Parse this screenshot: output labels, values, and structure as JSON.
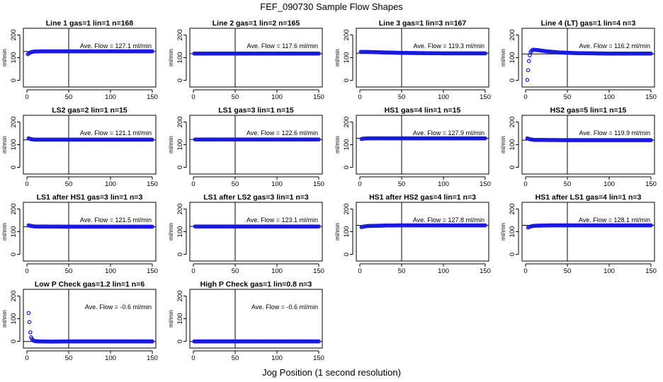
{
  "figure": {
    "title": "FEF_090730  Sample Flow Shapes",
    "xcaption": "Jog Position (1 second resolution)"
  },
  "chart_data": [
    {
      "type": "scatter",
      "title": "Line 1 gas=1 lin=1 n=168",
      "ylabel": "ml/min",
      "xlim": [
        0,
        150
      ],
      "ylim": [
        -20,
        220
      ],
      "xticks": [
        0,
        50,
        100,
        150
      ],
      "yticks": [
        0,
        100,
        200
      ],
      "vline": 50,
      "hline": 127.1,
      "annotation": "Ave. Flow =  127.1  ml/min",
      "series": [
        {
          "points": [
            [
              1,
              115
            ],
            [
              2,
              118
            ],
            [
              3,
              121
            ],
            [
              5,
              124
            ],
            [
              7,
              126
            ],
            [
              10,
              127
            ],
            [
              20,
              128
            ],
            [
              50,
              128
            ],
            [
              100,
              128
            ],
            [
              150,
              128
            ]
          ]
        }
      ]
    },
    {
      "type": "scatter",
      "title": "Line 2 gas=1 lin=2 n=165",
      "ylabel": "ml/min",
      "xlim": [
        0,
        150
      ],
      "ylim": [
        -20,
        220
      ],
      "xticks": [
        0,
        50,
        100,
        150
      ],
      "yticks": [
        0,
        100,
        200
      ],
      "vline": 50,
      "hline": 117.6,
      "annotation": "Ave. Flow =  117.6  ml/min",
      "series": [
        {
          "points": [
            [
              1,
              118
            ],
            [
              50,
              118
            ],
            [
              150,
              118
            ]
          ]
        }
      ]
    },
    {
      "type": "scatter",
      "title": "Line 3 gas=1 lin=3 n=167",
      "ylabel": "ml/min",
      "xlim": [
        0,
        150
      ],
      "ylim": [
        -20,
        220
      ],
      "xticks": [
        0,
        50,
        100,
        150
      ],
      "yticks": [
        0,
        100,
        200
      ],
      "vline": 50,
      "hline": 119.3,
      "annotation": "Ave. Flow =  119.3  ml/min",
      "series": [
        {
          "points": [
            [
              1,
              125
            ],
            [
              10,
              125
            ],
            [
              30,
              123
            ],
            [
              50,
              121
            ],
            [
              100,
              119
            ],
            [
              150,
              119
            ]
          ]
        }
      ]
    },
    {
      "type": "scatter",
      "title": "Line 4 (LT) gas=1 lin=4 n=3",
      "ylabel": "ml/min",
      "xlim": [
        0,
        150
      ],
      "ylim": [
        -20,
        220
      ],
      "xticks": [
        0,
        50,
        100,
        150
      ],
      "yticks": [
        0,
        100,
        200
      ],
      "vline": 50,
      "hline": 116.2,
      "annotation": "Ave. Flow =  116.2  ml/min",
      "series": [
        {
          "points": [
            [
              2,
              2
            ],
            [
              3,
              45
            ],
            [
              4,
              85
            ],
            [
              5,
              110
            ],
            [
              6,
              125
            ],
            [
              8,
              133
            ],
            [
              10,
              135
            ],
            [
              15,
              133
            ],
            [
              25,
              128
            ],
            [
              40,
              123
            ],
            [
              60,
              120
            ],
            [
              100,
              118
            ],
            [
              150,
              118
            ]
          ]
        }
      ]
    },
    {
      "type": "scatter",
      "title": "LS2 gas=2 lin=1 n=15",
      "ylabel": "ml/min",
      "xlim": [
        0,
        150
      ],
      "ylim": [
        -20,
        220
      ],
      "xticks": [
        0,
        50,
        100,
        150
      ],
      "yticks": [
        0,
        100,
        200
      ],
      "vline": 50,
      "hline": 121.1,
      "annotation": "Ave. Flow =  121.1  ml/min",
      "series": [
        {
          "points": [
            [
              2,
              128
            ],
            [
              5,
              124
            ],
            [
              10,
              122
            ],
            [
              50,
              122
            ],
            [
              150,
              122
            ]
          ]
        }
      ]
    },
    {
      "type": "scatter",
      "title": "LS1 gas=3 lin=1 n=15",
      "ylabel": "ml/min",
      "xlim": [
        0,
        150
      ],
      "ylim": [
        -20,
        220
      ],
      "xticks": [
        0,
        50,
        100,
        150
      ],
      "yticks": [
        0,
        100,
        200
      ],
      "vline": 50,
      "hline": 122.6,
      "annotation": "Ave. Flow =  122.6  ml/min",
      "series": [
        {
          "points": [
            [
              2,
              123
            ],
            [
              50,
              123
            ],
            [
              150,
              123
            ]
          ]
        }
      ]
    },
    {
      "type": "scatter",
      "title": "HS1 gas=4 lin=1 n=15",
      "ylabel": "ml/min",
      "xlim": [
        0,
        150
      ],
      "ylim": [
        -20,
        220
      ],
      "xticks": [
        0,
        50,
        100,
        150
      ],
      "yticks": [
        0,
        100,
        200
      ],
      "vline": 50,
      "hline": 127.9,
      "annotation": "Ave. Flow =  127.9  ml/min",
      "series": [
        {
          "points": [
            [
              2,
              125
            ],
            [
              5,
              127
            ],
            [
              10,
              128
            ],
            [
              50,
              128
            ],
            [
              150,
              128
            ]
          ]
        }
      ]
    },
    {
      "type": "scatter",
      "title": "HS2 gas=5 lin=1 n=15",
      "ylabel": "ml/min",
      "xlim": [
        0,
        150
      ],
      "ylim": [
        -20,
        220
      ],
      "xticks": [
        0,
        50,
        100,
        150
      ],
      "yticks": [
        0,
        100,
        200
      ],
      "vline": 50,
      "hline": 119.9,
      "annotation": "Ave. Flow =  119.9  ml/min",
      "series": [
        {
          "points": [
            [
              2,
              128
            ],
            [
              5,
              124
            ],
            [
              10,
              121
            ],
            [
              50,
              120
            ],
            [
              150,
              120
            ]
          ]
        }
      ]
    },
    {
      "type": "scatter",
      "title": "LS1 after HS1 gas=3 lin=1 n=3",
      "ylabel": "ml/min",
      "xlim": [
        0,
        150
      ],
      "ylim": [
        -20,
        220
      ],
      "xticks": [
        0,
        50,
        100,
        150
      ],
      "yticks": [
        0,
        100,
        200
      ],
      "vline": 50,
      "hline": 121.5,
      "annotation": "Ave. Flow =  121.5  ml/min",
      "series": [
        {
          "points": [
            [
              2,
              128
            ],
            [
              5,
              125
            ],
            [
              10,
              123
            ],
            [
              50,
              122
            ],
            [
              150,
              122
            ]
          ]
        }
      ]
    },
    {
      "type": "scatter",
      "title": "LS1 after LS2 gas=3 lin=1 n=3",
      "ylabel": "ml/min",
      "xlim": [
        0,
        150
      ],
      "ylim": [
        -20,
        220
      ],
      "xticks": [
        0,
        50,
        100,
        150
      ],
      "yticks": [
        0,
        100,
        200
      ],
      "vline": 50,
      "hline": 123.1,
      "annotation": "Ave. Flow =  123.1  ml/min",
      "series": [
        {
          "points": [
            [
              2,
              123
            ],
            [
              50,
              123
            ],
            [
              150,
              123
            ]
          ]
        }
      ]
    },
    {
      "type": "scatter",
      "title": "HS1 after HS2 gas=4 lin=1 n=3",
      "ylabel": "ml/min",
      "xlim": [
        0,
        150
      ],
      "ylim": [
        -20,
        220
      ],
      "xticks": [
        0,
        50,
        100,
        150
      ],
      "yticks": [
        0,
        100,
        200
      ],
      "vline": 50,
      "hline": 127.8,
      "annotation": "Ave. Flow =  127.8  ml/min",
      "series": [
        {
          "points": [
            [
              2,
              120
            ],
            [
              5,
              123
            ],
            [
              10,
              125
            ],
            [
              30,
              127
            ],
            [
              50,
              128
            ],
            [
              150,
              128
            ]
          ]
        }
      ]
    },
    {
      "type": "scatter",
      "title": "HS1 after LS1 gas=4 lin=1 n=3",
      "ylabel": "ml/min",
      "xlim": [
        0,
        150
      ],
      "ylim": [
        -20,
        220
      ],
      "xticks": [
        0,
        50,
        100,
        150
      ],
      "yticks": [
        0,
        100,
        200
      ],
      "vline": 50,
      "hline": 128.1,
      "annotation": "Ave. Flow =  128.1  ml/min",
      "series": [
        {
          "points": [
            [
              3,
              118
            ],
            [
              5,
              122
            ],
            [
              10,
              126
            ],
            [
              30,
              128
            ],
            [
              50,
              128
            ],
            [
              150,
              128
            ]
          ]
        }
      ]
    },
    {
      "type": "scatter",
      "title": "Low P Check gas=1.2 lin=1 n=6",
      "ylabel": "ml/min",
      "xlim": [
        0,
        150
      ],
      "ylim": [
        -20,
        220
      ],
      "xticks": [
        0,
        50,
        100,
        150
      ],
      "yticks": [
        0,
        100,
        200
      ],
      "vline": 50,
      "hline": -0.6,
      "annotation": "Ave. Flow =  -0.6  ml/min",
      "series": [
        {
          "points": [
            [
              2,
              125
            ],
            [
              3,
              85
            ],
            [
              4,
              40
            ],
            [
              5,
              18
            ],
            [
              7,
              5
            ],
            [
              10,
              1
            ],
            [
              15,
              0
            ],
            [
              30,
              -1
            ],
            [
              50,
              0
            ],
            [
              100,
              0
            ],
            [
              150,
              0
            ]
          ]
        }
      ]
    },
    {
      "type": "scatter",
      "title": "High P Check gas=1 lin=0.8 n=3",
      "ylabel": "ml/min",
      "xlim": [
        0,
        150
      ],
      "ylim": [
        -20,
        220
      ],
      "xticks": [
        0,
        50,
        100,
        150
      ],
      "yticks": [
        0,
        100,
        200
      ],
      "vline": 50,
      "hline": -0.6,
      "annotation": "Ave. Flow =  -0.6  ml/min",
      "series": [
        {
          "points": [
            [
              1,
              0
            ],
            [
              50,
              0
            ],
            [
              150,
              0
            ]
          ]
        }
      ]
    }
  ],
  "colors": {
    "points": "#1a1adf",
    "lines": "#000000",
    "text": "#000000"
  }
}
